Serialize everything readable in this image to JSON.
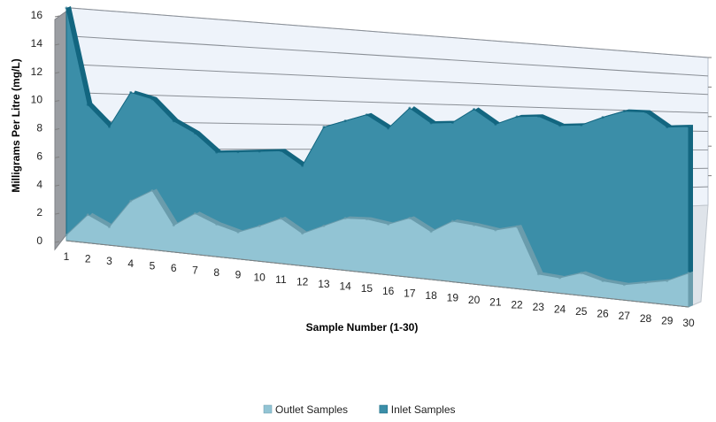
{
  "chart_data": {
    "type": "area",
    "style": "3d-area",
    "categories": [
      "1",
      "2",
      "3",
      "4",
      "5",
      "6",
      "7",
      "8",
      "9",
      "10",
      "11",
      "12",
      "13",
      "14",
      "15",
      "16",
      "17",
      "18",
      "19",
      "20",
      "21",
      "22",
      "23",
      "24",
      "25",
      "26",
      "27",
      "28",
      "29",
      "30"
    ],
    "series": [
      {
        "name": "Outlet Samples",
        "color": "#92c4d4",
        "values": [
          0.4,
          2.0,
          1.3,
          3.3,
          4.2,
          1.9,
          2.9,
          2.3,
          1.9,
          2.5,
          3.2,
          2.3,
          3.0,
          3.7,
          3.8,
          3.6,
          4.2,
          3.4,
          4.3,
          4.2,
          4.0,
          4.4,
          1.2,
          1.1,
          1.6,
          1.2,
          1.1,
          1.4,
          1.7,
          2.4
        ]
      },
      {
        "name": "Inlet Samples",
        "color": "#3b8ea8",
        "values": [
          16.5,
          9.8,
          8.4,
          11.0,
          10.7,
          9.3,
          8.6,
          7.4,
          7.6,
          7.8,
          8.0,
          7.1,
          10.0,
          10.6,
          11.2,
          10.4,
          12.0,
          11.1,
          11.3,
          12.4,
          11.5,
          12.2,
          12.4,
          11.9,
          12.1,
          12.8,
          13.4,
          13.5,
          12.6,
          12.8
        ]
      }
    ],
    "xlabel": "Sample Number (1-30)",
    "ylabel": "Milligrams Per Litre (mg/L)",
    "ylim": [
      0,
      16
    ],
    "yticks": [
      "0",
      "2",
      "4",
      "6",
      "8",
      "10",
      "12",
      "14",
      "16"
    ],
    "grid": true,
    "legend_position": "bottom"
  }
}
